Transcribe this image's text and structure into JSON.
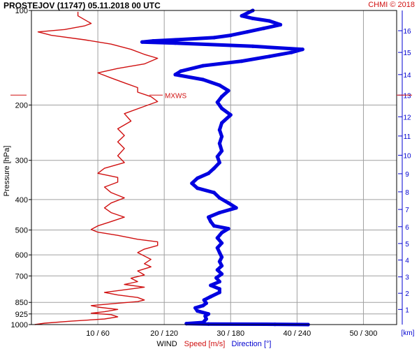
{
  "header": {
    "title": "PROSTEJOV (11747)    05.11.2018 00 UTC",
    "copyright": "CHMI © 2018"
  },
  "axes": {
    "ylabel": "Pressure [hPa]",
    "x_title_wind": "WIND",
    "x_title_speed": "Speed [m/s]",
    "x_title_direction": "Direction [°]",
    "km_label": "[km]",
    "mxws_label": "MXWS"
  },
  "colors": {
    "speed": "#d01010",
    "direction": "#0000e0",
    "grid": "#a0a0a0",
    "km_axis": "#0000d0"
  },
  "chart_data": {
    "type": "line",
    "y_scale": "log",
    "ylim": [
      1000,
      100
    ],
    "pressure_ticks": [
      100,
      200,
      300,
      400,
      500,
      600,
      700,
      850,
      925,
      1000
    ],
    "x_ticks": [
      {
        "speed": 10,
        "direction": 60,
        "label": "10 / 60"
      },
      {
        "speed": 20,
        "direction": 120,
        "label": "20 / 120"
      },
      {
        "speed": 30,
        "direction": 180,
        "label": "30 / 180"
      },
      {
        "speed": 40,
        "direction": 240,
        "label": "40 / 240"
      },
      {
        "speed": 50,
        "direction": 300,
        "label": "50 / 300"
      }
    ],
    "speed_xlim_ms": [
      0,
      55
    ],
    "direction_xlim_deg": [
      0,
      330
    ],
    "height_km_ticks": [
      {
        "km": 1,
        "p": 895
      },
      {
        "km": 2,
        "p": 795
      },
      {
        "km": 3,
        "p": 705
      },
      {
        "km": 4,
        "p": 623
      },
      {
        "km": 5,
        "p": 552
      },
      {
        "km": 6,
        "p": 488
      },
      {
        "km": 7,
        "p": 430
      },
      {
        "km": 8,
        "p": 378
      },
      {
        "km": 9,
        "p": 331
      },
      {
        "km": 10,
        "p": 289
      },
      {
        "km": 11,
        "p": 251
      },
      {
        "km": 12,
        "p": 218
      },
      {
        "km": 13,
        "p": 186
      },
      {
        "km": 14,
        "p": 160
      },
      {
        "km": 15,
        "p": 136
      },
      {
        "km": 16,
        "p": 116
      }
    ],
    "mxws_pressure": 186,
    "series": [
      {
        "name": "Speed [m/s]",
        "points": [
          [
            1000,
            0.5
          ],
          [
            990,
            2
          ],
          [
            975,
            6
          ],
          [
            960,
            11
          ],
          [
            945,
            13
          ],
          [
            930,
            12
          ],
          [
            920,
            9
          ],
          [
            910,
            11
          ],
          [
            895,
            13
          ],
          [
            880,
            10
          ],
          [
            870,
            9
          ],
          [
            855,
            13
          ],
          [
            845,
            16
          ],
          [
            835,
            17
          ],
          [
            820,
            16
          ],
          [
            805,
            13
          ],
          [
            790,
            11
          ],
          [
            775,
            14
          ],
          [
            760,
            17
          ],
          [
            745,
            14
          ],
          [
            730,
            16
          ],
          [
            712,
            15
          ],
          [
            695,
            17
          ],
          [
            675,
            16
          ],
          [
            655,
            18
          ],
          [
            640,
            17
          ],
          [
            620,
            18
          ],
          [
            605,
            17
          ],
          [
            590,
            16
          ],
          [
            575,
            17
          ],
          [
            560,
            19
          ],
          [
            545,
            19
          ],
          [
            535,
            16
          ],
          [
            520,
            13
          ],
          [
            508,
            10
          ],
          [
            498,
            9
          ],
          [
            485,
            10
          ],
          [
            470,
            12
          ],
          [
            455,
            14
          ],
          [
            440,
            12
          ],
          [
            425,
            11
          ],
          [
            410,
            12
          ],
          [
            395,
            14
          ],
          [
            380,
            12
          ],
          [
            365,
            11
          ],
          [
            352,
            13
          ],
          [
            340,
            13
          ],
          [
            330,
            10
          ],
          [
            318,
            11
          ],
          [
            305,
            14
          ],
          [
            290,
            13
          ],
          [
            275,
            14
          ],
          [
            262,
            13
          ],
          [
            250,
            14
          ],
          [
            238,
            13
          ],
          [
            225,
            15
          ],
          [
            213,
            14
          ],
          [
            202,
            17
          ],
          [
            195,
            19
          ],
          [
            188,
            18
          ],
          [
            182,
            16
          ],
          [
            176,
            16
          ],
          [
            170,
            14
          ],
          [
            164,
            12
          ],
          [
            158,
            10
          ],
          [
            153,
            13
          ],
          [
            148,
            17
          ],
          [
            142,
            19
          ],
          [
            138,
            17
          ],
          [
            133,
            15
          ],
          [
            128,
            12
          ],
          [
            124,
            8
          ],
          [
            120,
            3
          ],
          [
            117,
            1
          ],
          [
            115,
            5
          ],
          [
            112,
            8
          ],
          [
            110,
            9
          ],
          [
            107,
            8
          ],
          [
            104,
            7
          ],
          [
            101,
            7
          ]
        ]
      },
      {
        "name": "Direction [°]",
        "points": [
          [
            1000,
            250
          ],
          [
            998,
            220
          ],
          [
            996,
            160
          ],
          [
            993,
            140
          ],
          [
            985,
            155
          ],
          [
            960,
            158
          ],
          [
            940,
            157
          ],
          [
            925,
            160
          ],
          [
            905,
            150
          ],
          [
            885,
            148
          ],
          [
            870,
            155
          ],
          [
            855,
            158
          ],
          [
            835,
            156
          ],
          [
            815,
            162
          ],
          [
            790,
            170
          ],
          [
            770,
            170
          ],
          [
            750,
            162
          ],
          [
            730,
            170
          ],
          [
            710,
            167
          ],
          [
            690,
            172
          ],
          [
            670,
            168
          ],
          [
            650,
            172
          ],
          [
            630,
            170
          ],
          [
            610,
            172
          ],
          [
            590,
            170
          ],
          [
            570,
            168
          ],
          [
            550,
            172
          ],
          [
            530,
            168
          ],
          [
            510,
            172
          ],
          [
            495,
            178
          ],
          [
            485,
            165
          ],
          [
            470,
            162
          ],
          [
            455,
            160
          ],
          [
            440,
            170
          ],
          [
            425,
            185
          ],
          [
            410,
            178
          ],
          [
            395,
            170
          ],
          [
            380,
            165
          ],
          [
            368,
            150
          ],
          [
            355,
            145
          ],
          [
            342,
            150
          ],
          [
            330,
            160
          ],
          [
            318,
            165
          ],
          [
            305,
            170
          ],
          [
            292,
            168
          ],
          [
            280,
            172
          ],
          [
            265,
            170
          ],
          [
            252,
            172
          ],
          [
            240,
            170
          ],
          [
            228,
            172
          ],
          [
            215,
            180
          ],
          [
            205,
            172
          ],
          [
            196,
            168
          ],
          [
            188,
            172
          ],
          [
            180,
            178
          ],
          [
            173,
            170
          ],
          [
            166,
            155
          ],
          [
            160,
            130
          ],
          [
            156,
            135
          ],
          [
            150,
            155
          ],
          [
            145,
            190
          ],
          [
            140,
            215
          ],
          [
            136,
            235
          ],
          [
            133,
            245
          ],
          [
            130,
            200
          ],
          [
            127,
            130
          ],
          [
            126,
            100
          ],
          [
            125,
            110
          ],
          [
            124,
            130
          ],
          [
            122,
            165
          ],
          [
            120,
            180
          ],
          [
            117,
            195
          ],
          [
            114,
            210
          ],
          [
            111,
            225
          ],
          [
            108,
            215
          ],
          [
            106,
            200
          ],
          [
            104,
            190
          ],
          [
            102,
            195
          ],
          [
            100,
            200
          ]
        ]
      }
    ]
  }
}
